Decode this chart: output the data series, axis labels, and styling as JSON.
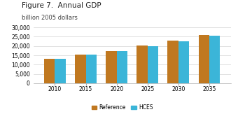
{
  "title": "Figure 7.  Annual GDP",
  "subtitle": "billion 2005 dollars",
  "years": [
    2010,
    2015,
    2020,
    2025,
    2030,
    2035
  ],
  "reference": [
    13200,
    15400,
    17300,
    20100,
    22800,
    25800
  ],
  "hces": [
    13100,
    15300,
    17200,
    19900,
    22700,
    25700
  ],
  "color_reference": "#C07820",
  "color_hces": "#3BB5D8",
  "ylim": [
    0,
    30000
  ],
  "yticks": [
    0,
    5000,
    10000,
    15000,
    20000,
    25000,
    30000
  ],
  "bar_width": 0.35,
  "legend_labels": [
    "Reference",
    "HCES"
  ],
  "title_fontsize": 7.5,
  "subtitle_fontsize": 6.0,
  "tick_fontsize": 5.5,
  "legend_fontsize": 5.5
}
